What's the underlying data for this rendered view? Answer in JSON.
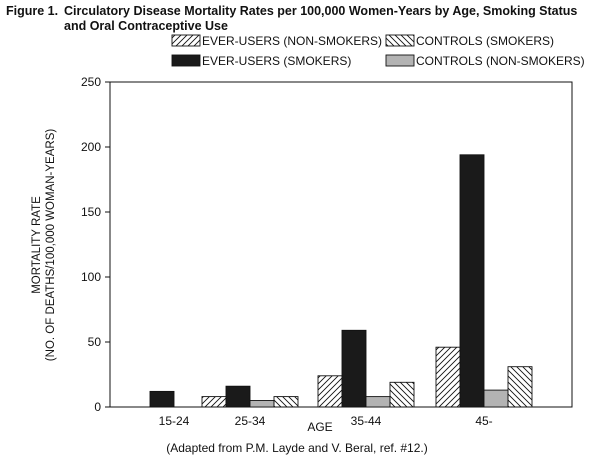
{
  "figure": {
    "label": "Figure 1.",
    "title": "Circulatory Disease Mortality Rates per 100,000 Women-Years by Age, Smoking Status and Oral Contraceptive Use"
  },
  "chart_data": {
    "type": "bar",
    "xlabel": "AGE",
    "ylabel_line1": "MORTALITY RATE",
    "ylabel_line2": "(NO. OF DEATHS/100,000 WOMAN-YEARS)",
    "categories": [
      "15-24",
      "25-34",
      "35-44",
      "45-"
    ],
    "ylim": [
      0,
      250
    ],
    "yticks": [
      0,
      50,
      100,
      150,
      200,
      250
    ],
    "grid": false,
    "legend_position": "top",
    "series": [
      {
        "name": "EVER-USERS (NON-SMOKERS)",
        "pattern": "hatch-forward",
        "values": [
          0,
          8,
          24,
          46
        ]
      },
      {
        "name": "EVER-USERS (SMOKERS)",
        "pattern": "solid-black",
        "values": [
          12,
          16,
          59,
          194
        ]
      },
      {
        "name": "CONTROLS (NON-SMOKERS)",
        "pattern": "solid-gray",
        "values": [
          0,
          5,
          8,
          13
        ]
      },
      {
        "name": "CONTROLS (SMOKERS)",
        "pattern": "hatch-back",
        "values": [
          0,
          8,
          19,
          31
        ]
      }
    ],
    "colors": {
      "black": "#1a1a1a",
      "gray": "#b3b3b3"
    },
    "source_note": "(Adapted from P.M. Layde and V. Beral, ref. #12.)"
  }
}
